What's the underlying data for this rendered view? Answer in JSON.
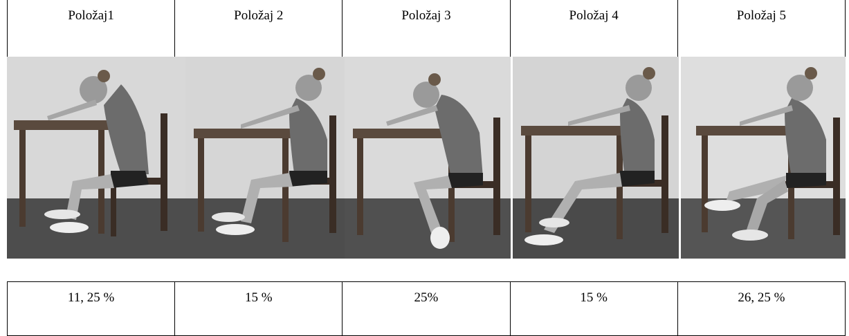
{
  "headers": [
    "Položaj1",
    "Položaj 2",
    "Položaj 3",
    "Položaj 4",
    "Položaj 5"
  ],
  "values": [
    "11, 25 %",
    "15 %",
    "25%",
    "15 %",
    "26, 25 %"
  ],
  "photos": [
    {
      "name": "photo-polozaj-1",
      "pose": "slouched-forward"
    },
    {
      "name": "photo-polozaj-2",
      "pose": "upright"
    },
    {
      "name": "photo-polozaj-3",
      "pose": "leaning-feet-under-chair"
    },
    {
      "name": "photo-polozaj-4",
      "pose": "upright-legs-extended"
    },
    {
      "name": "photo-polozaj-5",
      "pose": "legs-crossed"
    }
  ]
}
